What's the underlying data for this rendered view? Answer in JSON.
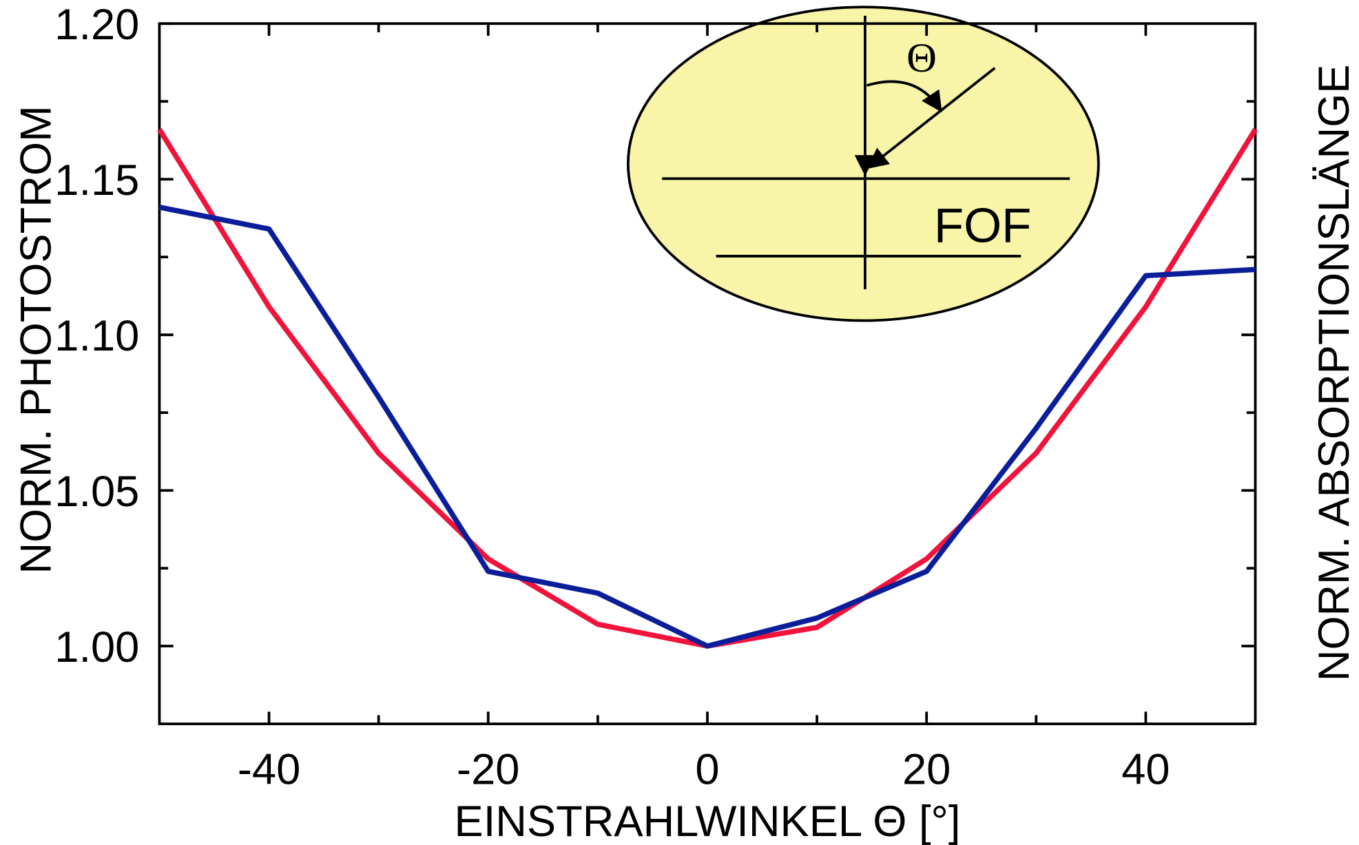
{
  "chart_data": {
    "type": "line",
    "xlabel": "EINSTRAHLWINKEL Θ  [°]",
    "ylabel": "NORM.  PHOTOSTROM",
    "y2label": "NORM.  ABSORPTIONSLÄNGE",
    "x": [
      -50,
      -40,
      -30,
      -20,
      -10,
      0,
      10,
      20,
      30,
      40,
      50
    ],
    "series": [
      {
        "color": "#f0143c",
        "values": [
          1.166,
          1.109,
          1.062,
          1.028,
          1.007,
          1.0,
          1.006,
          1.028,
          1.062,
          1.109,
          1.166
        ]
      },
      {
        "color": "#0a1e9a",
        "values": [
          1.141,
          1.134,
          1.08,
          1.024,
          1.017,
          1.0,
          1.009,
          1.024,
          1.07,
          1.119,
          1.121
        ]
      }
    ],
    "xlim": [
      -50,
      50
    ],
    "xticks": [
      -40,
      -20,
      0,
      20,
      40
    ],
    "xminorticks": [
      -30,
      -10,
      10,
      30
    ],
    "ylim": [
      0.975,
      1.2
    ],
    "yticks": [
      {
        "value": 1,
        "label": "1.00"
      },
      {
        "value": 1.05,
        "label": "1.05"
      },
      {
        "value": 1.1,
        "label": "1.10"
      },
      {
        "value": 1.15,
        "label": "1.15"
      },
      {
        "value": 1.2,
        "label": "1.20"
      }
    ],
    "yminorticks": [
      1.025,
      1.075,
      1.125,
      1.175
    ],
    "inset": {
      "angle_label": "Θ",
      "label": "FOF"
    }
  }
}
